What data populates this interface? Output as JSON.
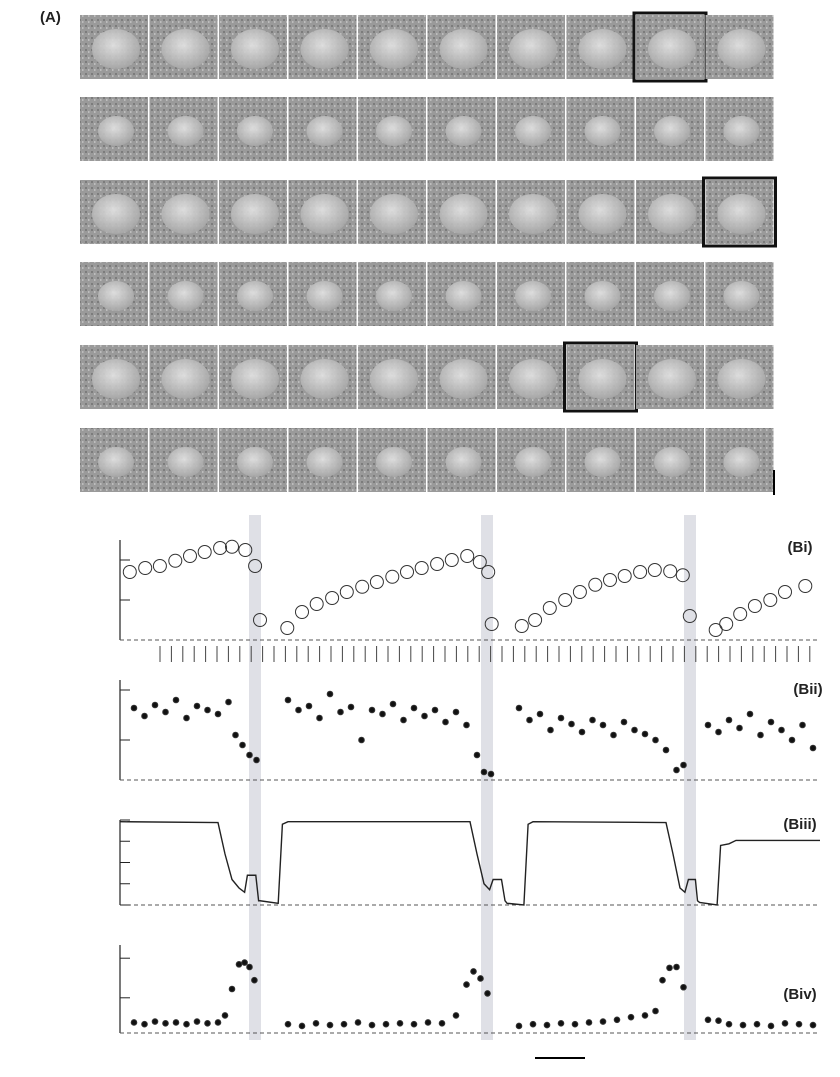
{
  "panel_a": {
    "label": "(A)"
  },
  "chart_data": [
    {
      "type": "scatter",
      "title": "(Bi)",
      "marker": "open",
      "x": [
        1.4,
        3.6,
        5.7,
        7.9,
        10,
        12.1,
        14.3,
        16,
        17.9,
        19.3,
        20,
        23.9,
        26,
        28.1,
        30.3,
        32.4,
        34.6,
        36.7,
        38.9,
        41,
        43.1,
        45.3,
        47.4,
        49.6,
        51.4,
        52.6,
        53.1,
        57.4,
        59.3,
        61.4,
        63.6,
        65.7,
        67.9,
        70,
        72.1,
        74.3,
        76.4,
        78.6,
        80.4,
        81.4,
        85.1,
        86.6,
        88.6,
        90.7,
        92.9,
        95,
        97.9
      ],
      "values": [
        1.7,
        1.8,
        1.85,
        1.98,
        2.1,
        2.2,
        2.3,
        2.33,
        2.25,
        1.85,
        0.5,
        0.3,
        0.7,
        0.9,
        1.05,
        1.2,
        1.33,
        1.45,
        1.58,
        1.7,
        1.8,
        1.9,
        2.0,
        2.1,
        1.95,
        1.7,
        0.4,
        0.35,
        0.5,
        0.8,
        1.0,
        1.2,
        1.38,
        1.5,
        1.6,
        1.7,
        1.75,
        1.72,
        1.62,
        0.6,
        0.25,
        0.4,
        0.65,
        0.85,
        1.0,
        1.2,
        1.35
      ],
      "xlim": [
        0,
        100
      ],
      "ylim": [
        0,
        2.5
      ],
      "yticks": [
        1,
        2
      ]
    },
    {
      "type": "scatter",
      "title": "(Bii)",
      "marker": "filled",
      "x": [
        2,
        3.5,
        5,
        6.5,
        8,
        9.5,
        11,
        12.5,
        14,
        15.5,
        16.5,
        17.5,
        18.5,
        19.5,
        24,
        25.5,
        27,
        28.5,
        30,
        31.5,
        33,
        34.5,
        36,
        37.5,
        39,
        40.5,
        42,
        43.5,
        45,
        46.5,
        48,
        49.5,
        51,
        52,
        53,
        57,
        58.5,
        60,
        61.5,
        63,
        64.5,
        66,
        67.5,
        69,
        70.5,
        72,
        73.5,
        75,
        76.5,
        78,
        79.5,
        80.5,
        84,
        85.5,
        87,
        88.5,
        90,
        91.5,
        93,
        94.5,
        96,
        97.5,
        99
      ],
      "values": [
        0.72,
        0.64,
        0.75,
        0.68,
        0.8,
        0.62,
        0.74,
        0.7,
        0.66,
        0.78,
        0.45,
        0.35,
        0.25,
        0.2,
        0.8,
        0.7,
        0.74,
        0.62,
        0.86,
        0.68,
        0.73,
        0.4,
        0.7,
        0.66,
        0.76,
        0.6,
        0.72,
        0.64,
        0.7,
        0.58,
        0.68,
        0.55,
        0.25,
        0.08,
        0.06,
        0.72,
        0.6,
        0.66,
        0.5,
        0.62,
        0.56,
        0.48,
        0.6,
        0.55,
        0.45,
        0.58,
        0.5,
        0.46,
        0.4,
        0.3,
        0.1,
        0.15,
        0.55,
        0.48,
        0.6,
        0.52,
        0.66,
        0.45,
        0.58,
        0.5,
        0.4,
        0.55,
        0.32
      ],
      "xlim": [
        0,
        100
      ],
      "ylim": [
        0,
        1
      ],
      "yticks": [
        0.4,
        0.9
      ]
    },
    {
      "type": "line",
      "title": "(Biii)",
      "x": [
        0,
        14,
        15,
        16,
        17,
        17.8,
        18.2,
        19.4,
        19.8,
        20,
        22.6,
        23.2,
        24,
        50,
        51,
        52,
        52.8,
        53.3,
        54.5,
        55,
        55.3,
        57.7,
        58.3,
        59,
        78,
        79,
        80,
        80.7,
        81.2,
        82.2,
        82.5,
        82.8,
        85.3,
        85.8,
        87,
        88,
        92,
        100
      ],
      "values": [
        0.98,
        0.97,
        0.6,
        0.3,
        0.2,
        0.15,
        0.35,
        0.35,
        0.05,
        0.05,
        0.02,
        0.95,
        0.98,
        0.98,
        0.6,
        0.25,
        0.18,
        0.3,
        0.3,
        0.05,
        0.02,
        0.0,
        0.95,
        0.98,
        0.97,
        0.6,
        0.2,
        0.15,
        0.3,
        0.3,
        0.05,
        0.03,
        0.0,
        0.7,
        0.72,
        0.76,
        0.76,
        0.76
      ],
      "xlim": [
        0,
        100
      ],
      "ylim": [
        0,
        1
      ],
      "yticks": [
        0,
        0.25,
        0.5,
        0.75,
        1
      ]
    },
    {
      "type": "scatter",
      "title": "(Biv)",
      "marker": "filled",
      "x": [
        2,
        3.5,
        5,
        6.5,
        8,
        9.5,
        11,
        12.5,
        14,
        15,
        16,
        17,
        17.8,
        18.5,
        19.2,
        24,
        26,
        28,
        30,
        32,
        34,
        36,
        38,
        40,
        42,
        44,
        46,
        48,
        49.5,
        50.5,
        51.5,
        52.5,
        57,
        59,
        61,
        63,
        65,
        67,
        69,
        71,
        73,
        75,
        76.5,
        77.5,
        78.5,
        79.5,
        80.5,
        84,
        85.5,
        87,
        89,
        91,
        93,
        95,
        97,
        99
      ],
      "values": [
        0.12,
        0.1,
        0.13,
        0.11,
        0.12,
        0.1,
        0.13,
        0.11,
        0.12,
        0.2,
        0.5,
        0.78,
        0.8,
        0.75,
        0.6,
        0.1,
        0.08,
        0.11,
        0.09,
        0.1,
        0.12,
        0.09,
        0.1,
        0.11,
        0.1,
        0.12,
        0.11,
        0.2,
        0.55,
        0.7,
        0.62,
        0.45,
        0.08,
        0.1,
        0.09,
        0.11,
        0.1,
        0.12,
        0.13,
        0.15,
        0.18,
        0.2,
        0.25,
        0.6,
        0.74,
        0.75,
        0.52,
        0.15,
        0.14,
        0.1,
        0.09,
        0.1,
        0.08,
        0.11,
        0.1,
        0.09
      ],
      "xlim": [
        0,
        100
      ],
      "ylim": [
        0,
        1
      ],
      "yticks": [
        0.4,
        0.85
      ]
    }
  ]
}
